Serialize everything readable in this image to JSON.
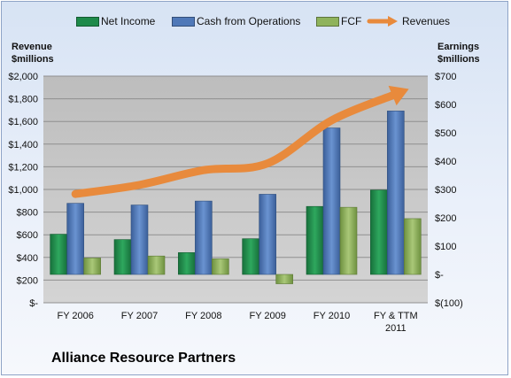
{
  "legend": {
    "net_income": "Net Income",
    "cfo": "Cash from Operations",
    "fcf": "FCF",
    "revenues": "Revenues"
  },
  "axes": {
    "left_title_line1": "Revenue",
    "left_title_line2": "$millions",
    "right_title_line1": "Earnings",
    "right_title_line2": "$millions"
  },
  "company": "Alliance Resource Partners",
  "colors": {
    "net_income": "#1e8a4a",
    "cfo": "#4f78b8",
    "fcf": "#8fb35c",
    "revenues": "#e88a3c",
    "plot_bg": "#c8c8c8"
  },
  "chart_data": {
    "type": "bar",
    "categories": [
      "FY 2006",
      "FY 2007",
      "FY 2008",
      "FY 2009",
      "FY 2010",
      "FY & TTM 2011"
    ],
    "series": [
      {
        "name": "Net Income",
        "axis": "right",
        "type": "bar",
        "values": [
          142,
          123,
          77,
          126,
          240,
          298
        ]
      },
      {
        "name": "Cash from Operations",
        "axis": "right",
        "type": "bar",
        "values": [
          251,
          245,
          259,
          283,
          517,
          577
        ]
      },
      {
        "name": "FCF",
        "axis": "right",
        "type": "bar",
        "values": [
          58,
          65,
          55,
          -33,
          237,
          197
        ]
      },
      {
        "name": "Revenues",
        "axis": "left",
        "type": "line",
        "values": [
          960,
          1040,
          1170,
          1230,
          1610,
          1840
        ]
      }
    ],
    "left_axis": {
      "title": "Revenue $millions",
      "ylim": [
        0,
        2000
      ],
      "ticks": [
        0,
        200,
        400,
        600,
        800,
        1000,
        1200,
        1400,
        1600,
        1800,
        2000
      ],
      "tick_labels": [
        "$-",
        "$200",
        "$400",
        "$600",
        "$800",
        "$1,000",
        "$1,200",
        "$1,400",
        "$1,600",
        "$1,800",
        "$2,000"
      ]
    },
    "right_axis": {
      "title": "Earnings $millions",
      "ylim": [
        -100,
        700
      ],
      "ticks": [
        -100,
        0,
        100,
        200,
        300,
        400,
        500,
        600,
        700
      ],
      "tick_labels": [
        "$(100)",
        "$-",
        "$100",
        "$200",
        "$300",
        "$400",
        "$500",
        "$600",
        "$700"
      ]
    },
    "xtick_labels": [
      [
        "FY 2006"
      ],
      [
        "FY 2007"
      ],
      [
        "FY 2008"
      ],
      [
        "FY 2009"
      ],
      [
        "FY 2010"
      ],
      [
        "FY & TTM",
        "2011"
      ]
    ],
    "grid": true,
    "legend_position": "top"
  }
}
